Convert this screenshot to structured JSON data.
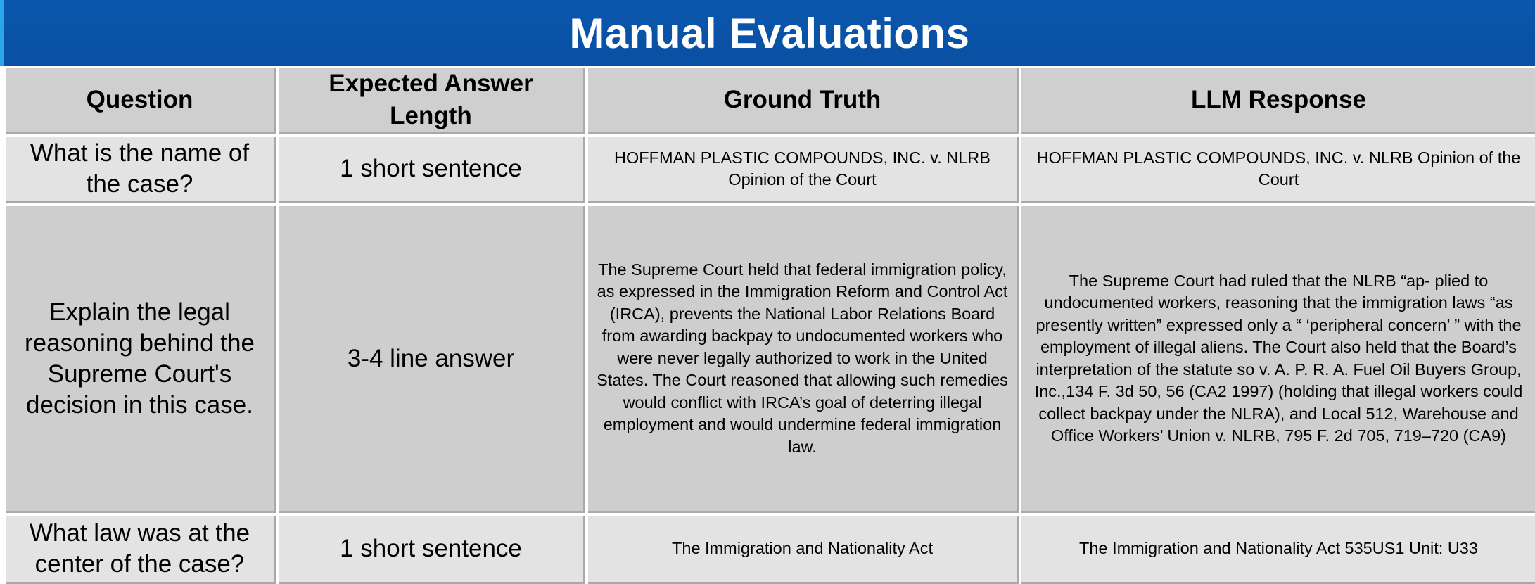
{
  "title": "Manual Evaluations",
  "columns": [
    "Question",
    "Expected Answer Length",
    "Ground Truth",
    "LLM  Response"
  ],
  "rows": [
    {
      "question": "What is the name of the case?",
      "expected_length": "1 short sentence",
      "ground_truth": "HOFFMAN PLASTIC COMPOUNDS, INC. v. NLRB Opinion of the Court",
      "llm_response": "HOFFMAN PLASTIC COMPOUNDS, INC. v. NLRB Opinion of the Court"
    },
    {
      "question": "Explain the legal reasoning behind the Supreme Court's decision in this case.",
      "expected_length": "3-4 line answer",
      "ground_truth": "The Supreme Court held that federal immigration policy, as expressed in the Immigration Reform and Control Act (IRCA), prevents the National Labor Relations Board from awarding backpay to undocumented workers who were never legally authorized to work in the United States. The Court reasoned that allowing such remedies would conflict with IRCA’s goal of deterring illegal employment and would undermine federal immigration law.",
      "llm_response": "The Supreme Court had ruled that the NLRB “ap- plied to undocumented workers, reasoning that the immigration laws “as presently written” expressed only a “ ‘peripheral concern’ ” with the employment of illegal aliens. The Court also held that the Board’s interpretation of the statute so v. A. P. R. A. Fuel Oil Buyers Group, Inc.,134 F. 3d 50, 56 (CA2 1997) (holding that illegal workers could collect backpay under the NLRA), and Local 512, Warehouse and Office Workers’ Union v. NLRB, 795 F. 2d 705, 719–720 (CA9)"
    },
    {
      "question": "What law was at the center of the case?",
      "expected_length": "1 short sentence",
      "ground_truth": "The Immigration and Nationality Act",
      "llm_response": "The Immigration and Nationality Act 535US1 Unit: U33"
    }
  ],
  "colors": {
    "title_bar": "#0a57ad",
    "accent": "#2aa7e8",
    "cell_dark": "#cfcfcf",
    "cell_light": "#e3e3e3"
  }
}
